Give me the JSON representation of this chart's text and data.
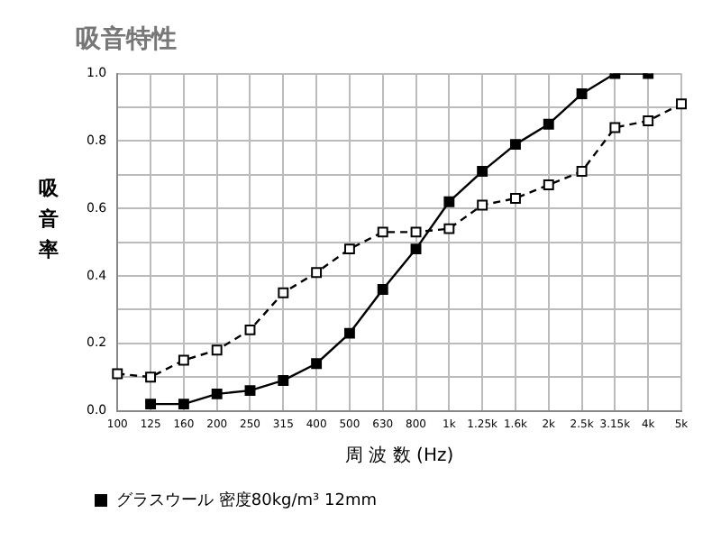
{
  "chart_data": {
    "type": "line",
    "title": "吸音特性",
    "xlabel": "周 波 数 (Hz)",
    "ylabel": "吸音率",
    "categories": [
      "100",
      "125",
      "160",
      "200",
      "250",
      "315",
      "400",
      "500",
      "630",
      "800",
      "1k",
      "1.25k",
      "1.6k",
      "2k",
      "2.5k",
      "3.15k",
      "4k",
      "5k"
    ],
    "series": [
      {
        "name": "グラスウール 密度80kg/m³ 12mm",
        "color": "#000000",
        "marker": "square",
        "line_style": "solid",
        "values": [
          null,
          0.02,
          0.02,
          0.05,
          0.06,
          0.09,
          0.14,
          0.23,
          0.36,
          0.48,
          0.62,
          0.71,
          0.79,
          0.85,
          0.94,
          1.0,
          1.0,
          null
        ]
      },
      {
        "color": "#000000",
        "marker": "square",
        "line_style": "dashed",
        "values": [
          0.11,
          0.1,
          0.15,
          0.18,
          0.24,
          0.35,
          0.41,
          0.48,
          0.53,
          0.53,
          0.54,
          0.61,
          0.63,
          0.67,
          0.71,
          0.84,
          0.86,
          0.91
        ]
      }
    ],
    "ylim": [
      0,
      1
    ],
    "yticks": [
      {
        "value": 0,
        "label": "0.0"
      },
      {
        "value": 0.1,
        "label": null
      },
      0.2,
      {
        "value": 0.3,
        "label": null
      },
      0.4,
      {
        "value": 0.5,
        "label": null
      },
      0.6,
      {
        "value": 0.7,
        "label": null
      },
      0.8,
      {
        "value": 0.9,
        "label": null
      },
      {
        "value": 1,
        "label": "1.0"
      }
    ],
    "grid": true,
    "legend": "bottom"
  }
}
